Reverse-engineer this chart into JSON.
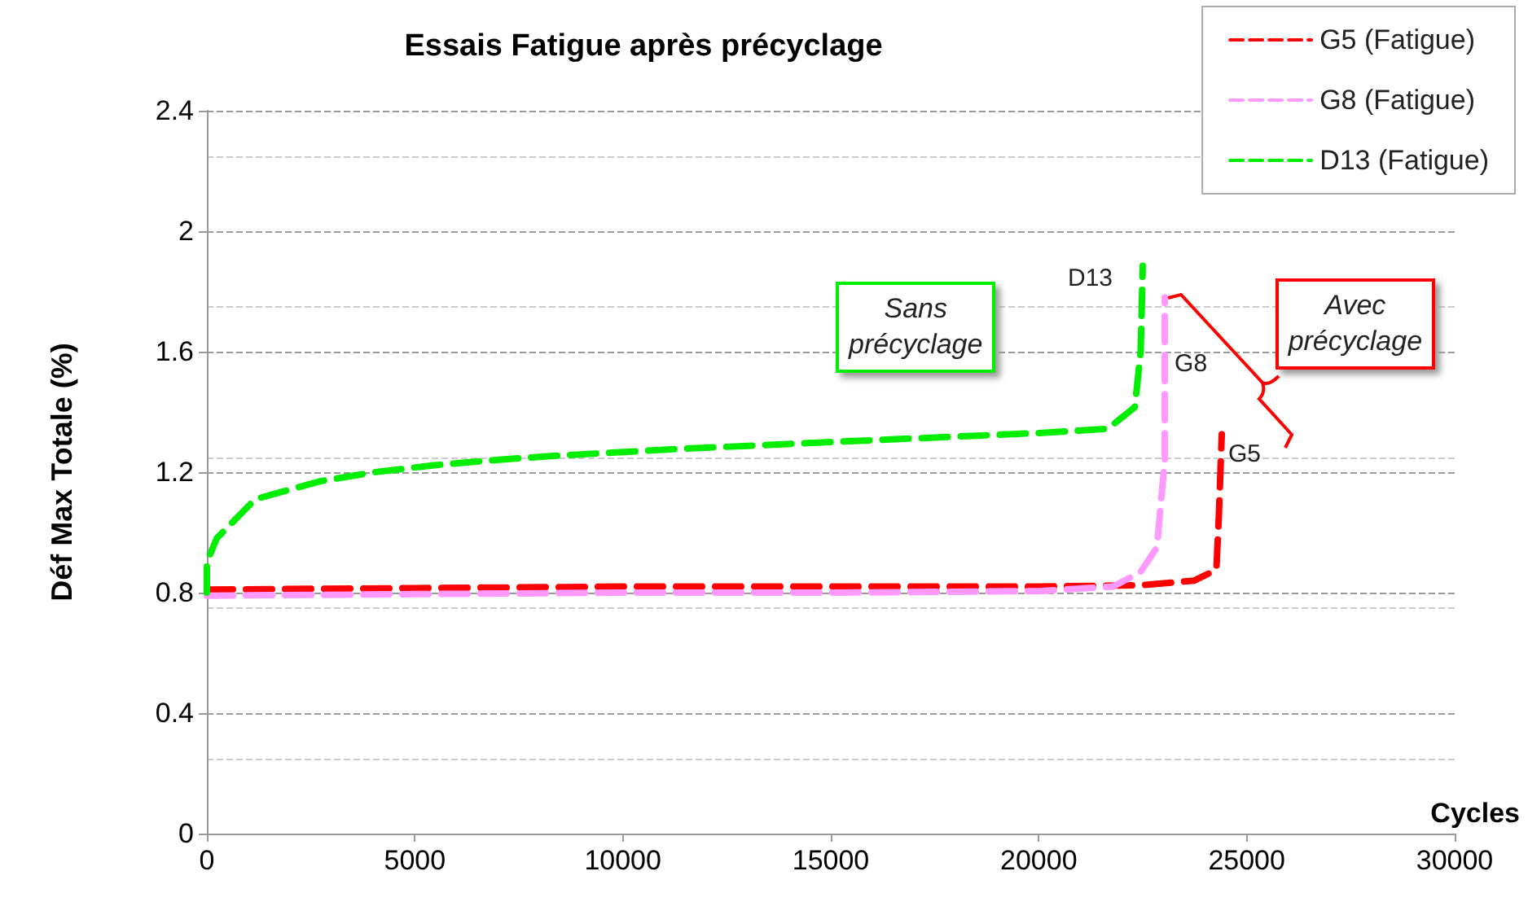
{
  "chart_data": {
    "type": "line",
    "title": "Essais Fatigue après précyclage",
    "xlabel": "Cycles",
    "ylabel": "Déf Max Totale (%)",
    "xlim": [
      0,
      30000
    ],
    "xticks": [
      0,
      5000,
      10000,
      15000,
      20000,
      25000,
      30000
    ],
    "ylim": [
      0,
      2.4
    ],
    "yticks": [
      0,
      0.4,
      0.8,
      1.2,
      1.6,
      2,
      2.4
    ],
    "grid": "y",
    "legend": "top right",
    "line_style": "dashed",
    "marker": "none",
    "series": [
      {
        "name": "G5 (Fatigue)",
        "color": "#ff0000",
        "x": [
          0,
          5000,
          10000,
          15000,
          20000,
          22500,
          23740,
          24270,
          24330,
          24400
        ],
        "values": [
          0.81,
          0.815,
          0.82,
          0.82,
          0.82,
          0.825,
          0.84,
          0.876,
          1.056,
          1.326
        ]
      },
      {
        "name": "G8 (Fatigue)",
        "color": "#ff99ff",
        "x": [
          0,
          5000,
          10000,
          15000,
          20000,
          21780,
          22440,
          22840,
          23030,
          23030
        ],
        "values": [
          0.79,
          0.795,
          0.8,
          0.8,
          0.805,
          0.82,
          0.867,
          0.95,
          1.24,
          1.78
        ]
      },
      {
        "name": "D13 (Fatigue)",
        "color": "#00ee00",
        "x": [
          0,
          0,
          235,
          1160,
          2730,
          4030,
          5470,
          6900,
          8340,
          11200,
          15000,
          20000,
          21660,
          22310,
          22450,
          22500
        ],
        "values": [
          0.8,
          0.9,
          0.98,
          1.11,
          1.17,
          1.2,
          1.223,
          1.24,
          1.254,
          1.276,
          1.3,
          1.33,
          1.344,
          1.416,
          1.6,
          1.885
        ]
      }
    ],
    "annotations": [
      {
        "text": "D13",
        "x": 22500,
        "y": 1.885
      },
      {
        "text": "G8",
        "x": 23030,
        "y": 1.6
      },
      {
        "text": "G5",
        "x": 24400,
        "y": 1.3
      },
      "Sans précyclage",
      {
        "text": "Avec précyclage",
        "x": 23100,
        "y": 1.78
      }
    ]
  }
}
